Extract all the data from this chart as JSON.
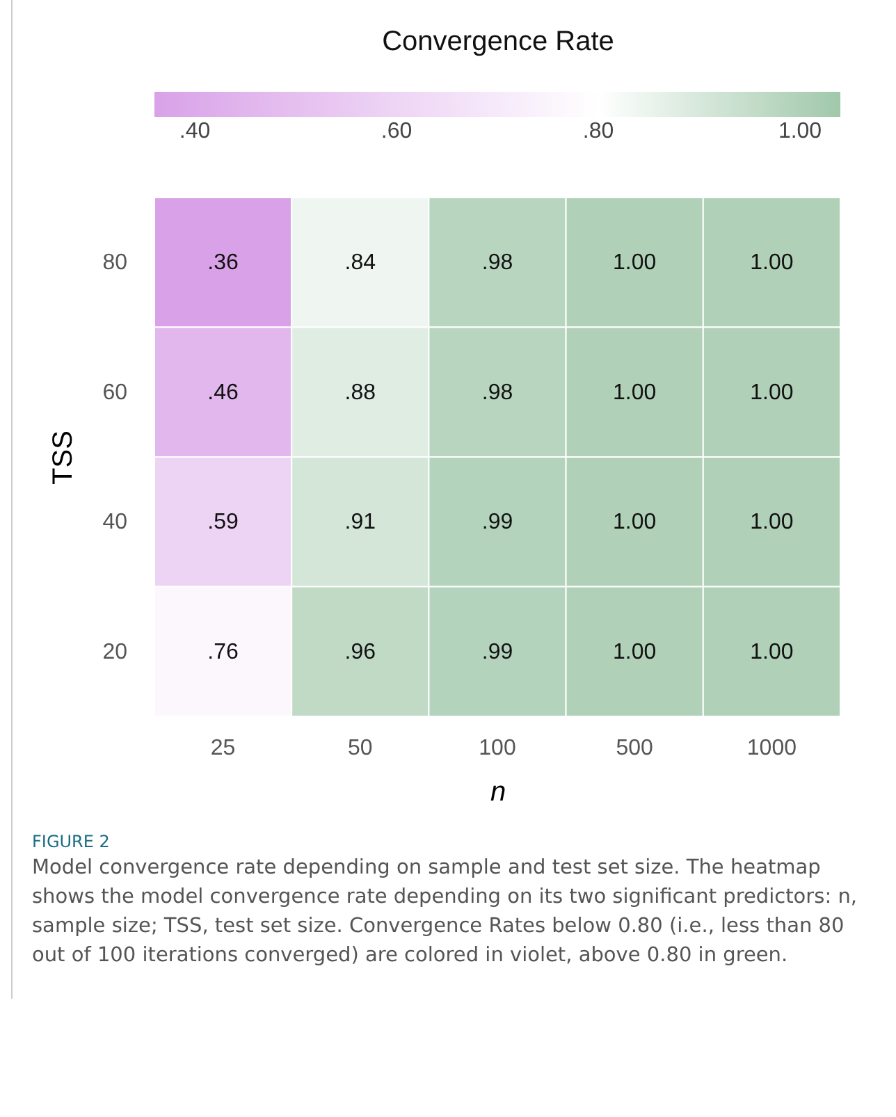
{
  "chart_data": {
    "type": "heatmap",
    "legend_title": "Convergence Rate",
    "xlabel": "n",
    "ylabel": "TSS",
    "categories": [
      "25",
      "50",
      "100",
      "500",
      "1000"
    ],
    "y_categories": [
      "80",
      "60",
      "40",
      "20"
    ],
    "cells": [
      [
        0.36,
        0.84,
        0.98,
        1.0,
        1.0
      ],
      [
        0.46,
        0.88,
        0.98,
        1.0,
        1.0
      ],
      [
        0.59,
        0.91,
        0.99,
        1.0,
        1.0
      ],
      [
        0.76,
        0.96,
        0.99,
        1.0,
        1.0
      ]
    ],
    "cell_labels": [
      [
        ".36",
        ".84",
        ".98",
        "1.00",
        "1.00"
      ],
      [
        ".46",
        ".88",
        ".98",
        "1.00",
        "1.00"
      ],
      [
        ".59",
        ".91",
        ".99",
        "1.00",
        "1.00"
      ],
      [
        ".76",
        ".96",
        ".99",
        "1.00",
        "1.00"
      ]
    ],
    "clim": [
      0.36,
      1.04
    ],
    "cticks": [
      {
        "value": 0.4,
        "label": ".40"
      },
      {
        "value": 0.6,
        "label": ".60"
      },
      {
        "value": 0.8,
        "label": ".80"
      },
      {
        "value": 1.0,
        "label": "1.00"
      }
    ],
    "annotations": [
      "FIGURE 2",
      "Model convergence rate depending on sample and test set size. The heatmap shows the model convergence rate depending on its two significant predictors: n, sample size; TSS, test set size. Convergence Rates below 0.80 (i.e., less than 80 out of 100 iterations converged) are colored in violet, above 0.80 in green."
    ]
  }
}
